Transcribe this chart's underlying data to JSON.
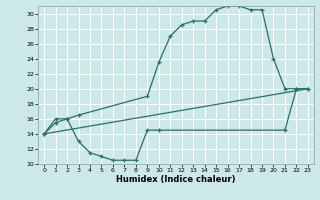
{
  "xlabel": "Humidex (Indice chaleur)",
  "bg_color": "#cce8e8",
  "grid_color": "#ffffff",
  "line_color": "#2d6e66",
  "ylim": [
    10,
    31
  ],
  "yticks": [
    10,
    12,
    14,
    16,
    18,
    20,
    22,
    24,
    26,
    28,
    30
  ],
  "xticks": [
    0,
    1,
    2,
    3,
    4,
    5,
    6,
    7,
    8,
    9,
    10,
    11,
    12,
    13,
    14,
    15,
    16,
    17,
    18,
    19,
    20,
    21,
    22,
    23
  ],
  "line1_x": [
    0,
    1,
    2,
    3,
    9,
    10,
    11,
    12,
    13,
    14,
    15,
    16,
    17,
    18,
    19,
    20,
    21,
    22,
    23
  ],
  "line1_y": [
    14,
    16,
    16,
    16.5,
    19,
    23.5,
    27,
    28.5,
    29,
    29,
    30.5,
    31,
    31,
    30.5,
    30.5,
    24,
    20,
    20,
    20
  ],
  "line2_x": [
    0,
    23
  ],
  "line2_y": [
    14,
    20
  ],
  "line3_x": [
    0,
    1,
    2,
    3,
    4,
    5,
    6,
    7,
    8,
    9,
    10,
    21,
    22,
    23
  ],
  "line3_y": [
    14,
    15.5,
    16,
    13,
    11.5,
    11,
    10.5,
    10.5,
    10.5,
    14.5,
    14.5,
    14.5,
    20,
    20
  ]
}
